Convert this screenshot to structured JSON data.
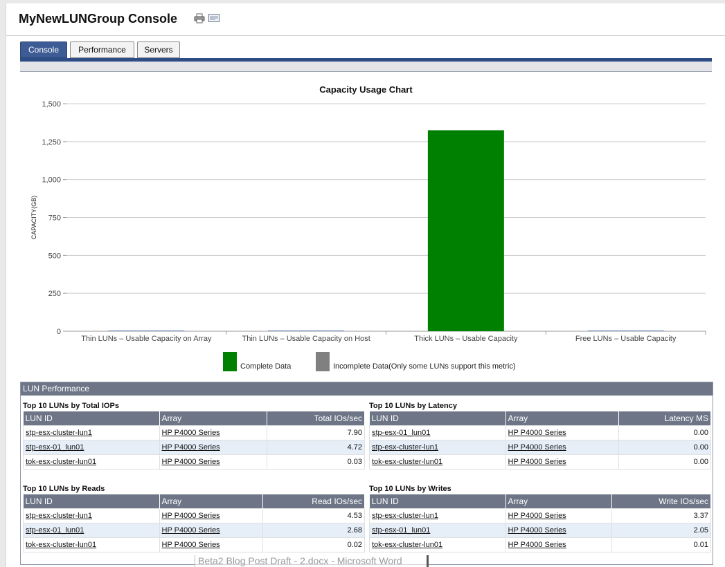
{
  "header": {
    "title": "MyNewLUNGroup Console",
    "print_icon": "printer-icon",
    "email_icon": "email-icon"
  },
  "tabs": [
    {
      "label": "Console",
      "active": true
    },
    {
      "label": "Performance",
      "active": false
    },
    {
      "label": "Servers",
      "active": false
    }
  ],
  "chart_data": {
    "type": "bar",
    "title": "Capacity Usage Chart",
    "xlabel": "",
    "ylabel": "CAPACITY(GB)",
    "ylim": [
      0,
      1500
    ],
    "yticks": [
      "1,500",
      "1,250",
      "1,000",
      "750",
      "500",
      "250",
      "0"
    ],
    "categories": [
      "Thin LUNs – Usable Capacity on Array",
      "Thin LUNs – Usable Capacity on Host",
      "Thick LUNs – Usable Capacity",
      "Free LUNs – Usable Capacity"
    ],
    "values": [
      0,
      0,
      1325,
      0
    ],
    "bar_color": "#008000",
    "grid": true,
    "legend": [
      {
        "label": "Complete Data",
        "color": "#008000"
      },
      {
        "label": "Incomplete Data(Only some LUNs support this metric)",
        "color": "#808080"
      }
    ]
  },
  "perf": {
    "title": "LUN Performance",
    "panels": [
      {
        "title": "Top 10 LUNs by Total IOPs",
        "columns": [
          "LUN ID",
          "Array",
          "Total IOs/sec"
        ],
        "rows": [
          [
            "stp-esx-cluster-lun1",
            "HP P4000 Series",
            "7.90"
          ],
          [
            "stp-esx-01_lun01",
            "HP P4000 Series",
            "4.72"
          ],
          [
            "tok-esx-cluster-lun01",
            "HP P4000 Series",
            "0.03"
          ]
        ]
      },
      {
        "title": "Top 10 LUNs by Latency",
        "columns": [
          "LUN ID",
          "Array",
          "Latency MS"
        ],
        "rows": [
          [
            "stp-esx-01_lun01",
            "HP P4000 Series",
            "0.00"
          ],
          [
            "stp-esx-cluster-lun1",
            "HP P4000 Series",
            "0.00"
          ],
          [
            "tok-esx-cluster-lun01",
            "HP P4000 Series",
            "0.00"
          ]
        ]
      },
      {
        "title": "Top 10 LUNs by Reads",
        "columns": [
          "LUN ID",
          "Array",
          "Read IOs/sec"
        ],
        "rows": [
          [
            "stp-esx-cluster-lun1",
            "HP P4000 Series",
            "4.53"
          ],
          [
            "stp-esx-01_lun01",
            "HP P4000 Series",
            "2.68"
          ],
          [
            "tok-esx-cluster-lun01",
            "HP P4000 Series",
            "0.02"
          ]
        ]
      },
      {
        "title": "Top 10 LUNs by Writes",
        "columns": [
          "LUN ID",
          "Array",
          "Write IOs/sec"
        ],
        "rows": [
          [
            "stp-esx-cluster-lun1",
            "HP P4000 Series",
            "3.37"
          ],
          [
            "stp-esx-01_lun01",
            "HP P4000 Series",
            "2.05"
          ],
          [
            "tok-esx-cluster-lun01",
            "HP P4000 Series",
            "0.01"
          ]
        ]
      }
    ]
  },
  "taskbar": {
    "label": "Beta2 Blog Post Draft - 2.docx - Microsoft Word"
  }
}
